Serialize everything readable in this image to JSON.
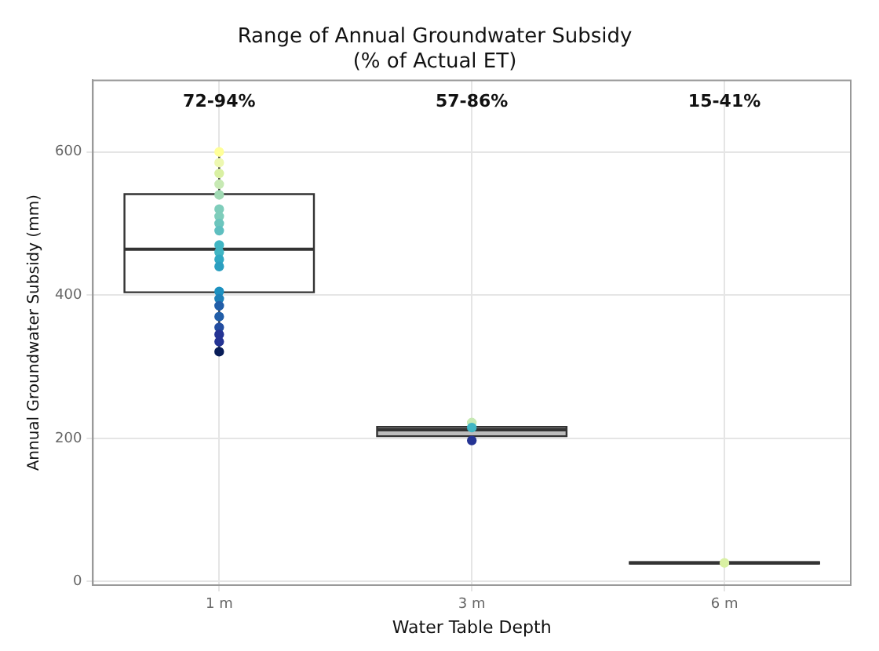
{
  "chart_data": {
    "type": "box",
    "title": "Range of Annual Groundwater Subsidy (% of Actual ET)",
    "xlabel": "Water Table Depth",
    "ylabel": "Annual Groundwater Subsidy (mm)",
    "categories": [
      "1 m",
      "3 m",
      "6 m"
    ],
    "boxes": [
      {
        "low": 321,
        "q1": 404,
        "median": 464,
        "q3": 541,
        "high": 600
      },
      {
        "low": 197,
        "q1": 203,
        "median": 212,
        "q3": 216,
        "high": 222
      },
      {
        "low": 24,
        "q1": 25,
        "median": 26,
        "q3": 27,
        "high": 30
      }
    ],
    "colors": [
      "#ffffff",
      "#bdbdbd",
      "#ffffff"
    ],
    "series": [
      {
        "type": "scatter",
        "x": [
          "1 m",
          "1 m",
          "1 m",
          "1 m",
          "1 m",
          "1 m",
          "1 m",
          "1 m",
          "1 m",
          "1 m",
          "1 m",
          "1 m",
          "1 m",
          "1 m",
          "1 m",
          "1 m",
          "1 m",
          "1 m",
          "1 m",
          "1 m",
          "1 m",
          "3 m",
          "3 m",
          "3 m",
          "3 m",
          "3 m",
          "3 m",
          "6 m",
          "6 m"
        ],
        "values": [
          600,
          585,
          570,
          555,
          540,
          520,
          510,
          500,
          490,
          470,
          460,
          450,
          440,
          405,
          395,
          385,
          370,
          355,
          345,
          335,
          321,
          222,
          215,
          null,
          null,
          null,
          197,
          null,
          26
        ],
        "colors": [
          "#ffff99",
          "#edf8b1",
          "#d9f0a3",
          "#c7e9b4",
          "#a1dab4",
          "#7fcdbb",
          "#7fcdbb",
          "#6cc5bd",
          "#5fbfc0",
          "#41b6c4",
          "#41b6c4",
          "#31a9c3",
          "#2c9fc0",
          "#1d91c0",
          "#1f80b8",
          "#225ea8",
          "#225ea8",
          "#234da0",
          "#253494",
          "#253494",
          "#081d58",
          "#c7e9b4",
          "#41b6c4",
          "#225ea8",
          "#253494",
          "#253494",
          "#253494",
          "#41b6c4",
          "#d9f0a3"
        ]
      }
    ],
    "annotations": [
      "72-94%",
      "57-86%",
      "15-41%"
    ],
    "ylim": [
      -5,
      700
    ],
    "yticks": [
      0,
      200,
      400,
      600
    ],
    "grid": true,
    "legend": false,
    "marker": "circle"
  }
}
